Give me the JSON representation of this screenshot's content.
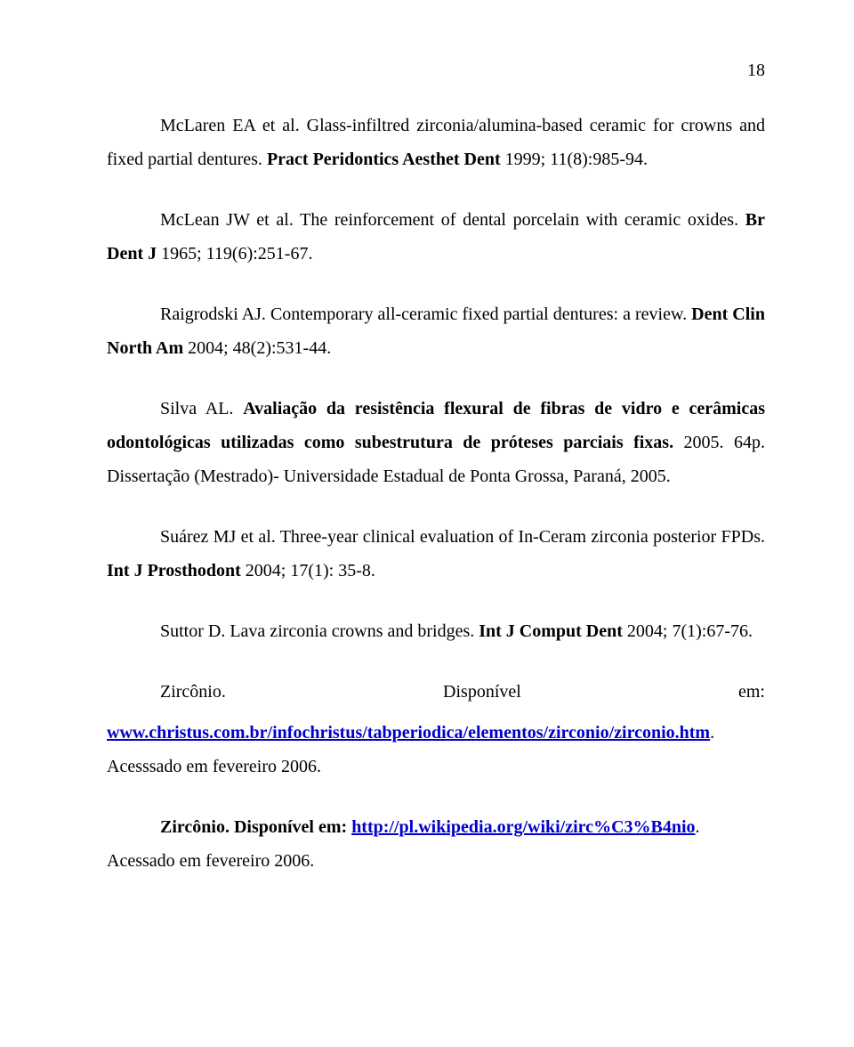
{
  "page_number": "18",
  "ref1": {
    "lead": "McLaren EA et al. Glass-infiltred  zirconia/alumina-based ceramic for crowns and fixed partial dentures. ",
    "journal": "Pract Peridontics Aesthet Dent",
    "tail": " 1999; 11(8):985-94."
  },
  "ref2": {
    "lead": "McLean JW et al. The reinforcement of dental porcelain with ceramic oxides. ",
    "journal": "Br Dent J",
    "tail": " 1965; 119(6):251-67."
  },
  "ref3": {
    "lead": "Raigrodski AJ. Contemporary all-ceramic fixed partial dentures: a review. ",
    "journal": "Dent Clin North Am",
    "tail": " 2004; 48(2):531-44."
  },
  "ref4": {
    "lead": "Silva AL. ",
    "title_bold": "Avaliação da resistência flexural de fibras de vidro e cerâmicas odontológicas utilizadas como subestrutura de próteses parciais fixas.",
    "tail": " 2005. 64p. Dissertação (Mestrado)- Universidade Estadual de Ponta Grossa, Paraná, 2005."
  },
  "ref5": {
    "lead": "Suárez MJ et al. Three-year clinical evaluation of In-Ceram zirconia posterior FPDs. ",
    "journal": "Int J Prosthodont",
    "tail": " 2004; 17(1): 35-8."
  },
  "ref6": {
    "lead": "Suttor D. Lava zirconia crowns and bridges. ",
    "journal": "Int J Comput Dent",
    "tail": " 2004; 7(1):67-76."
  },
  "ref7": {
    "left": "Zircônio.",
    "mid": "Disponível",
    "right": "em:",
    "link": "www.christus.com.br/infochristus/tabperiodica/elementos/zirconio/zirconio.htm",
    "tail": ". Acesssado em fevereiro 2006."
  },
  "ref8": {
    "lead_bold": "Zircônio. Disponível em:",
    "spacer": "   ",
    "link": "http://pl.wikipedia.org/wiki/zirc%C3%B4nio",
    "tail": ". Acessado em fevereiro 2006."
  }
}
